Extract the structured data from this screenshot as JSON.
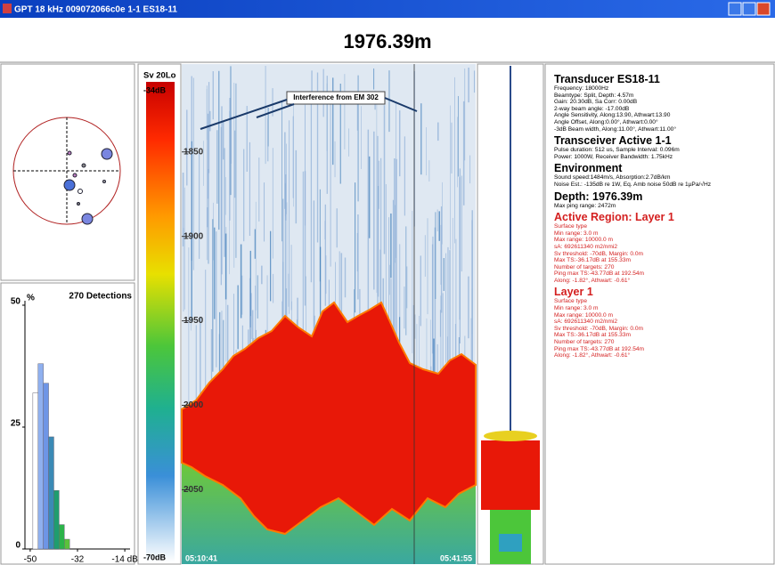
{
  "window": {
    "title": "GPT  18 kHz 009072066c0e 1-1 ES18-11",
    "depth": "1976.39m"
  },
  "colorbar": {
    "title": "Sv 20Lo",
    "max_label": "-34dB",
    "min_label": "-70dB"
  },
  "echogram": {
    "annotation": "Interference from EM 302",
    "ylim": [
      1798,
      2094
    ],
    "yticks": [
      1850,
      1900,
      1950,
      2000,
      2050
    ],
    "time_start": "05:10:41",
    "time_end": "05:41:55"
  },
  "chart_data": {
    "type": "histogram",
    "title": "270 Detections",
    "ylabel": "%",
    "bins": [
      -49,
      -47,
      -45,
      -43,
      -41,
      -39,
      -37,
      -35
    ],
    "values": [
      32,
      38,
      34,
      23,
      12,
      5,
      2
    ],
    "colors": [
      "#ffffff",
      "#8fb0ef",
      "#6e95e6",
      "#3a8ab5",
      "#1f9d6e",
      "#2cb34a",
      "#5bc23b"
    ],
    "xlim": [
      -52,
      -12
    ],
    "xticks": [
      -50,
      -32,
      {
        "value": -14,
        "label": "-14 dB"
      }
    ],
    "ylim": [
      0,
      50
    ],
    "yticks": [
      0,
      25,
      50
    ]
  },
  "info": {
    "sections": [
      {
        "heading": "Transducer ES18-11",
        "color": "#000000",
        "lines": [
          "Frequency: 18000Hz",
          "Beamtype: Split, Depth: 4.57m",
          "Gain: 20.30dB, Sa Corr: 0.00dB",
          "2-way beam angle: -17.00dB",
          "Angle Sensitivity, Along:13.90, Athwart:13.90",
          "Angle Offset, Along:0.00°, Athwart:0.00°",
          "-3dB Beam width, Along:11.00°, Athwart:11.00°"
        ]
      },
      {
        "heading": "Transceiver Active  1-1",
        "color": "#000000",
        "lines": [
          "Pulse duration: 512 us, Sample Interval: 0.096m",
          "Power: 1000W, Receiver Bandwidth: 1.75kHz"
        ]
      },
      {
        "heading": "Environment",
        "color": "#000000",
        "lines": [
          "Sound speed:1484m/s, Absorption:2.7dB/km",
          "Noise Est.: -135dB re 1W, Eq. Amb noise 50dB re 1µPa/√Hz"
        ]
      },
      {
        "heading": "Depth: 1976.39m",
        "color": "#000000",
        "lines": [
          "Max ping range: 2472m"
        ]
      },
      {
        "heading": "Active Region: Layer 1",
        "color": "#d42020",
        "lines": [
          "Surface type",
          "Min range: 3.0 m",
          "Max range: 10000.0 m",
          "sA: 692611340 m2/nmi2",
          "Sv threshold: -70dB, Margin: 0.0m",
          "Max TS:-36.17dB at 155.33m",
          "Number of targets: 270",
          "Ping max TS:-43.77dB at 192.54m",
          "Along: -1.82°, Athwart: -0.61°"
        ]
      },
      {
        "heading": "Layer 1",
        "color": "#d42020",
        "lines": [
          "Surface type",
          "Min range: 3.0 m",
          "Max range: 10000.0 m",
          "sA: 692611340 m2/nmi2",
          "Sv threshold: -70dB, Margin: 0.0m",
          "Max TS:-36.17dB at 155.33m",
          "Number of targets: 270",
          "Ping max TS:-43.77dB at 192.54m",
          "Along: -1.82°, Athwart: -0.61°"
        ]
      }
    ]
  }
}
